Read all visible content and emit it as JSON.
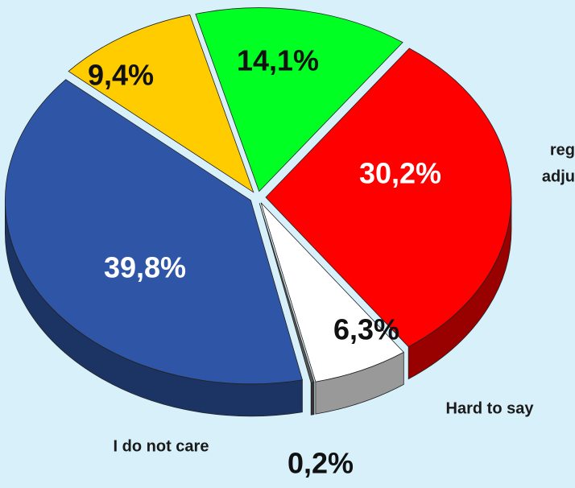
{
  "chart_data": {
    "type": "pie",
    "categories": [
      null,
      null,
      "Hard to say",
      "I do not care",
      null,
      null
    ],
    "values": [
      14.1,
      30.2,
      6.3,
      0.2,
      39.8,
      9.4
    ],
    "value_labels": [
      "14,1%",
      "30,2%",
      "6,3%",
      "0,2%",
      "39,8%",
      "9,4%"
    ],
    "colors": [
      "#00ff22",
      "#ff0000",
      "#ffffff",
      "#555555",
      "#2f56a6",
      "#ffcc00"
    ],
    "annotations": [
      "reg",
      "adju"
    ]
  }
}
